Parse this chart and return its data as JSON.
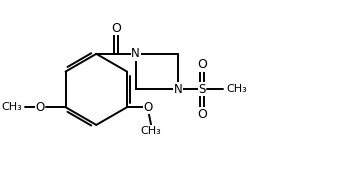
{
  "bg_color": "#ffffff",
  "line_color": "#000000",
  "line_width": 1.4,
  "font_size": 8.5,
  "bond_color": "#000000",
  "xlim": [
    0,
    10
  ],
  "ylim": [
    0,
    5
  ]
}
